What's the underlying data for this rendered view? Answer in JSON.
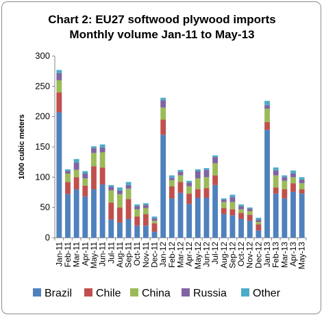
{
  "chart_data": {
    "type": "bar",
    "stacked": true,
    "title": "Chart 2: EU27 softwood plywood imports",
    "subtitle": "Monthly volume Jan-11 to May-13",
    "ylabel": "1000 cubic meters",
    "xlabel": "",
    "ylim": [
      0,
      300
    ],
    "yticks": [
      0,
      50,
      100,
      150,
      200,
      250,
      300
    ],
    "grid": false,
    "legend": "bottom",
    "categories": [
      "Jan-11",
      "Feb-11",
      "Mar-11",
      "Apr-11",
      "May-11",
      "Jun-11",
      "Jul-11",
      "Aug-11",
      "Sep-11",
      "Oct-11",
      "Nov-11",
      "Dec-11",
      "Jan-12",
      "Feb-12",
      "Mar-12",
      "Apr-12",
      "May-12",
      "Jun-12",
      "Jul-12",
      "Aug-12",
      "Sep-12",
      "Oct-12",
      "Nov-12",
      "Dec-12",
      "Jan-13",
      "Feb-13",
      "Mar-13",
      "Apr-13",
      "May-13"
    ],
    "tick_labels": [
      "Jan-11",
      "Mar-11",
      "May-11",
      "Jul-11",
      "Sep-11",
      "Nov-11",
      "Jan-12",
      "Mar-12",
      "May-12",
      "Jul-12",
      "Sep-12",
      "Nov-12",
      "Jan-13",
      "Mar-13",
      "May-13",
      "Feb-11",
      "Apr-11",
      "Jun-11",
      "Aug-11",
      "Oct-11",
      "Dec-11",
      "Feb-12",
      "Apr-12",
      "Jun-12",
      "Aug-12",
      "Oct-12",
      "Dec-12",
      "Feb-13",
      "Apr-13"
    ],
    "series": [
      {
        "name": "Brazil",
        "color": "#4f81bd",
        "values": [
          207,
          72,
          80,
          68,
          80,
          88,
          30,
          25,
          31,
          20,
          20,
          10,
          170,
          65,
          74,
          56,
          66,
          66,
          87,
          39,
          37,
          31,
          28,
          12,
          178,
          73,
          65,
          76,
          73
        ]
      },
      {
        "name": "Chile",
        "color": "#c0504d",
        "values": [
          33,
          20,
          20,
          18,
          38,
          28,
          28,
          25,
          33,
          15,
          19,
          14,
          25,
          20,
          18,
          17,
          14,
          16,
          16,
          10,
          10,
          10,
          10,
          10,
          13,
          10,
          15,
          14,
          7
        ]
      },
      {
        "name": "China",
        "color": "#9bbb59",
        "values": [
          20,
          14,
          12,
          12,
          22,
          25,
          20,
          22,
          17,
          12,
          10,
          4,
          20,
          10,
          11,
          12,
          18,
          18,
          20,
          10,
          12,
          6,
          6,
          4,
          22,
          20,
          14,
          10,
          10
        ]
      },
      {
        "name": "Russia",
        "color": "#8064a2",
        "values": [
          12,
          4,
          12,
          8,
          8,
          8,
          6,
          6,
          6,
          5,
          5,
          4,
          12,
          4,
          6,
          6,
          12,
          12,
          10,
          4,
          8,
          5,
          4,
          4,
          6,
          8,
          6,
          6,
          6
        ]
      },
      {
        "name": "Other",
        "color": "#4bacc6",
        "values": [
          5,
          3,
          6,
          4,
          3,
          5,
          3,
          5,
          5,
          3,
          3,
          3,
          4,
          4,
          3,
          3,
          3,
          3,
          3,
          2,
          4,
          3,
          2,
          3,
          7,
          5,
          3,
          5,
          4
        ]
      }
    ]
  }
}
